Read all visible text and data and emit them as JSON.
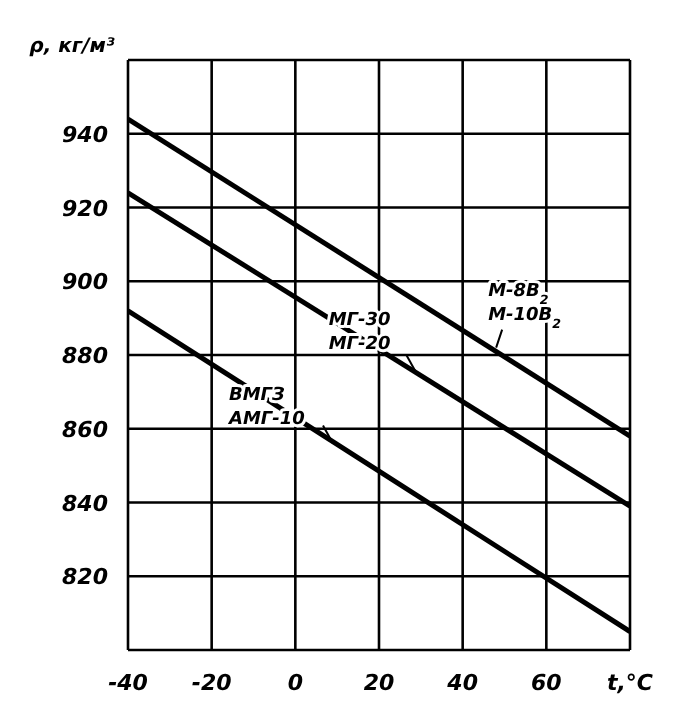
{
  "chart_data": {
    "type": "line",
    "xlabel": "t,°C",
    "ylabel": "ρ, кг/м³",
    "x": [
      -40,
      80
    ],
    "series": [
      {
        "color": "#000000",
        "values": [
          944,
          858
        ]
      },
      {
        "color": "#000000",
        "values": [
          924,
          839
        ]
      },
      {
        "color": "#000000",
        "values": [
          892,
          805
        ]
      }
    ],
    "xlim": [
      -40,
      80
    ],
    "xticks": [
      -40,
      -20,
      0,
      20,
      40,
      60,
      {
        "value": 80,
        "label": null
      }
    ],
    "ylim": [
      800,
      960
    ],
    "yticks": [
      {
        "value": 800,
        "label": null
      },
      820,
      840,
      860,
      880,
      900,
      920,
      940,
      {
        "value": 960,
        "label": null
      }
    ],
    "annotations": [
      {
        "text": "М-8В$_{2}$\nМ-10В$_{2}$",
        "x": 48,
        "y": 882
      },
      {
        "text": "МГ-30\nМГ-20",
        "x": 29,
        "y": 875
      },
      {
        "text": "ВМГЗ\nАМГ-10",
        "x": 9,
        "y": 856
      }
    ],
    "grid": true,
    "marker": "none",
    "line_style": "solid"
  }
}
